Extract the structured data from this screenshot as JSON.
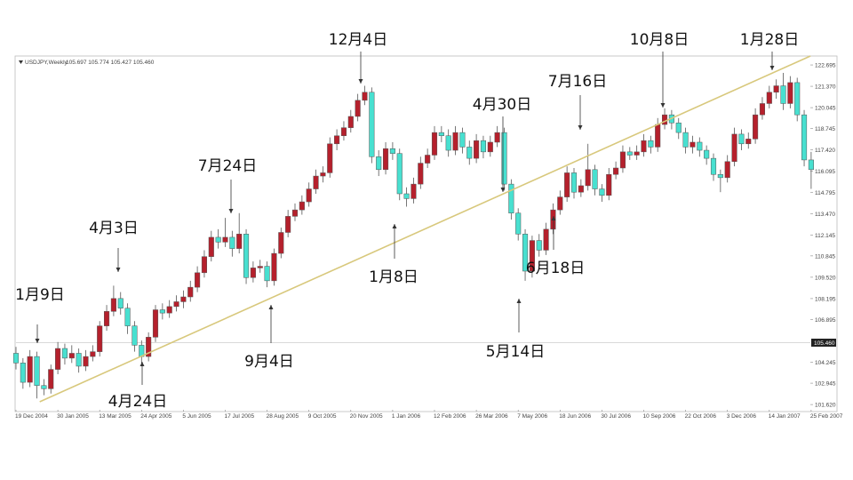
{
  "chart_data": {
    "type": "candlestick",
    "title": "USDJPY,Weekly",
    "header_ohlc": "105.697 105.774 105.427 105.460",
    "up_color": "#b5202c",
    "down_color": "#48e0d0",
    "trendline_color": "#d8c87c",
    "categories": [
      "19 Dec 2004",
      null,
      null,
      null,
      null,
      null,
      "30 Jan 2005",
      null,
      null,
      null,
      null,
      null,
      "13 Mar 2005",
      null,
      null,
      null,
      null,
      null,
      "24 Apr 2005",
      null,
      null,
      null,
      null,
      null,
      "5 Jun 2005",
      null,
      null,
      null,
      null,
      null,
      "17 Jul 2005",
      null,
      null,
      null,
      null,
      null,
      "28 Aug 2005",
      null,
      null,
      null,
      null,
      null,
      "9 Oct 2005",
      null,
      null,
      null,
      null,
      null,
      "20 Nov 2005",
      null,
      null,
      null,
      null,
      null,
      "1 Jan 2006",
      null,
      null,
      null,
      null,
      null,
      "12 Feb 2006",
      null,
      null,
      null,
      null,
      null,
      "26 Mar 2006",
      null,
      null,
      null,
      null,
      null,
      "7 May 2006",
      null,
      null,
      null,
      null,
      null,
      "18 Jun 2006",
      null,
      null,
      null,
      null,
      null,
      "30 Jul 2006",
      null,
      null,
      null,
      null,
      null,
      "10 Sep 2006",
      null,
      null,
      null,
      null,
      null,
      "22 Oct 2006",
      null,
      null,
      null,
      null,
      null,
      "3 Dec 2006",
      null,
      null,
      null,
      null,
      null,
      "14 Jan 2007",
      null,
      null,
      null,
      null,
      null,
      "25 Feb 2007"
    ],
    "open": [
      104.8,
      104.2,
      103.0,
      104.6,
      102.8,
      102.6,
      103.8,
      105.1,
      104.5,
      104.8,
      104.0,
      104.6,
      104.9,
      106.5,
      107.4,
      108.2,
      107.6,
      106.5,
      105.3,
      104.6,
      105.8,
      107.5,
      107.3,
      107.7,
      108.0,
      108.3,
      108.9,
      109.8,
      110.8,
      112.0,
      111.7,
      112.0,
      111.3,
      112.2,
      109.5,
      110.1,
      110.2,
      109.3,
      111.0,
      112.3,
      113.3,
      113.7,
      114.2,
      115.0,
      115.8,
      116.0,
      117.8,
      118.3,
      118.8,
      119.5,
      120.5,
      121.0,
      117.0,
      116.2,
      117.5,
      117.2,
      114.7,
      114.4,
      115.3,
      116.6,
      117.1,
      118.5,
      118.3,
      117.4,
      118.5,
      117.6,
      116.9,
      118.0,
      117.3,
      117.9,
      118.5,
      115.3,
      113.5,
      112.2,
      109.9,
      111.8,
      111.2,
      112.5,
      113.7,
      114.5,
      116.0,
      114.8,
      115.2,
      116.2,
      115.0,
      114.6,
      115.9,
      116.3,
      117.3,
      117.1,
      117.3,
      118.0,
      117.6,
      119.0,
      119.6,
      119.1,
      118.5,
      117.6,
      117.9,
      117.4,
      116.9,
      115.9,
      115.7,
      116.7,
      118.4,
      117.8,
      118.1,
      119.6,
      120.3,
      121.0,
      121.4,
      120.3,
      121.6,
      119.6,
      116.8
    ],
    "high": [
      105.2,
      104.5,
      105.0,
      104.9,
      103.2,
      104.1,
      105.5,
      105.4,
      105.3,
      105.1,
      105.0,
      105.3,
      106.8,
      107.8,
      109.0,
      108.6,
      107.9,
      106.8,
      105.6,
      106.1,
      107.8,
      107.9,
      108.1,
      108.4,
      108.7,
      109.3,
      110.2,
      111.2,
      112.4,
      112.5,
      113.2,
      112.4,
      113.5,
      112.5,
      110.5,
      110.6,
      110.5,
      111.3,
      112.6,
      113.7,
      114.1,
      114.6,
      115.4,
      116.2,
      116.4,
      118.2,
      118.7,
      119.2,
      119.9,
      120.9,
      121.4,
      121.3,
      117.4,
      117.9,
      117.9,
      117.5,
      115.1,
      115.7,
      117.0,
      117.5,
      118.9,
      118.9,
      118.7,
      118.9,
      118.8,
      118.0,
      118.4,
      118.3,
      118.3,
      118.9,
      118.8,
      115.6,
      113.8,
      112.5,
      112.1,
      112.2,
      112.9,
      114.1,
      114.9,
      116.4,
      116.3,
      115.6,
      117.8,
      116.5,
      115.3,
      116.3,
      116.7,
      117.7,
      117.6,
      117.7,
      118.4,
      118.3,
      119.4,
      120.0,
      119.9,
      119.4,
      118.8,
      118.3,
      118.2,
      117.7,
      117.2,
      116.2,
      117.1,
      118.8,
      118.7,
      118.5,
      120.0,
      120.7,
      121.4,
      121.8,
      122.2,
      122.0,
      121.9,
      119.9,
      117.3
    ],
    "low": [
      103.8,
      102.6,
      102.7,
      102.0,
      102.2,
      102.3,
      103.5,
      104.1,
      104.2,
      103.6,
      103.7,
      104.3,
      104.6,
      106.2,
      107.1,
      107.2,
      106.0,
      104.9,
      104.0,
      104.3,
      105.5,
      106.9,
      107.0,
      107.4,
      107.6,
      108.0,
      108.6,
      109.5,
      110.5,
      111.3,
      111.4,
      110.8,
      111.0,
      109.1,
      109.2,
      109.8,
      108.9,
      109.0,
      110.7,
      112.0,
      113.0,
      113.4,
      113.9,
      114.7,
      115.4,
      115.7,
      117.4,
      118.0,
      118.5,
      119.2,
      120.2,
      116.6,
      115.8,
      115.9,
      116.8,
      114.3,
      113.9,
      114.1,
      115.0,
      116.3,
      116.8,
      117.9,
      117.0,
      117.1,
      117.2,
      116.5,
      116.6,
      116.9,
      117.0,
      117.6,
      114.9,
      113.1,
      111.8,
      109.3,
      109.5,
      110.8,
      110.9,
      112.2,
      113.4,
      114.2,
      114.4,
      114.5,
      114.9,
      114.6,
      114.2,
      114.3,
      115.6,
      116.0,
      116.8,
      116.8,
      117.0,
      117.2,
      117.3,
      118.7,
      118.7,
      118.1,
      117.2,
      117.2,
      117.0,
      116.5,
      115.5,
      114.8,
      115.4,
      116.4,
      117.4,
      117.5,
      117.8,
      119.3,
      120.0,
      120.6,
      119.9,
      120.0,
      119.2,
      116.4,
      115.0
    ],
    "close": [
      104.2,
      103.0,
      104.6,
      102.8,
      102.6,
      103.8,
      105.1,
      104.5,
      104.8,
      104.0,
      104.6,
      104.9,
      106.5,
      107.4,
      108.2,
      107.6,
      106.5,
      105.3,
      104.6,
      105.8,
      107.5,
      107.3,
      107.7,
      108.0,
      108.3,
      108.9,
      109.8,
      110.8,
      112.0,
      111.7,
      112.0,
      111.3,
      112.2,
      109.5,
      110.1,
      110.2,
      109.3,
      111.0,
      112.3,
      113.3,
      113.7,
      114.2,
      115.0,
      115.8,
      116.0,
      117.8,
      118.3,
      118.8,
      119.5,
      120.5,
      121.0,
      117.0,
      116.2,
      117.5,
      117.2,
      114.7,
      114.4,
      115.3,
      116.6,
      117.1,
      118.5,
      118.3,
      117.4,
      118.5,
      117.6,
      116.9,
      118.0,
      117.3,
      117.9,
      118.5,
      115.3,
      113.5,
      112.2,
      109.9,
      111.8,
      111.2,
      112.5,
      113.7,
      114.5,
      116.0,
      114.8,
      115.2,
      116.2,
      115.0,
      114.6,
      115.9,
      116.3,
      117.3,
      117.1,
      117.3,
      118.0,
      117.6,
      119.0,
      119.6,
      119.1,
      118.5,
      117.6,
      117.9,
      117.4,
      116.9,
      115.9,
      115.7,
      116.7,
      118.4,
      117.8,
      118.1,
      119.6,
      120.3,
      121.0,
      121.4,
      120.3,
      121.6,
      119.6,
      116.8,
      116.2
    ],
    "ylim": [
      101.35,
      123.25
    ],
    "yticks": [
      122.695,
      {
        "value": 121.37,
        "label": "121.370"
      },
      120.045,
      118.745,
      {
        "value": 117.42,
        "label": "117.420"
      },
      116.095,
      114.795,
      {
        "value": 113.47,
        "label": "113.470"
      },
      112.145,
      110.845,
      {
        "value": 109.52,
        "label": "109.520"
      },
      108.195,
      106.895,
      104.245,
      102.945,
      {
        "value": 101.62,
        "label": "101.620"
      }
    ],
    "current_price": {
      "value": 105.46,
      "label": "105.460"
    },
    "trendline": {
      "x": [
        3.4,
        113.9
      ],
      "y": [
        101.79,
        123.25
      ]
    },
    "annotations": [
      "1月9日",
      "4月3日",
      "4月24日",
      "7月24日",
      "9月4日",
      "12月4日",
      "1月8日",
      "4月30日",
      "5月14日",
      "6月18日",
      "7月16日",
      "10月8日",
      "1月28日"
    ]
  }
}
